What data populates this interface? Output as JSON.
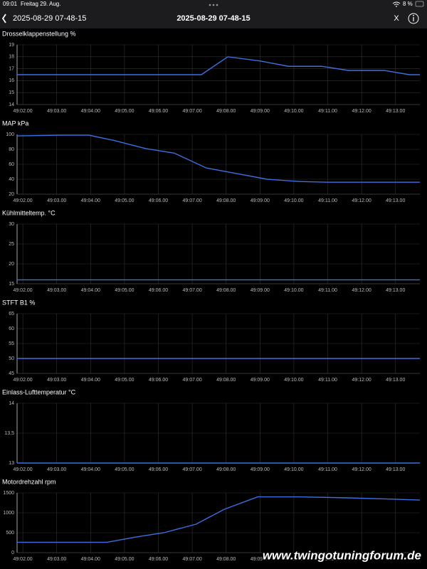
{
  "status_bar": {
    "time": "09:01",
    "date": "Freitag 29. Aug.",
    "battery": "8 %"
  },
  "header": {
    "back_title": "2025-08-29 07-48-15",
    "title": "2025-08-29 07-48-15",
    "close": "X"
  },
  "watermark": "www.twingotuningforum.de",
  "chart_data": [
    {
      "type": "line",
      "title": "Drosselklappenstellung %",
      "color": "#3d6fe3",
      "grid": true,
      "x": [
        2941.83,
        2947.27,
        2948.05,
        2949.0,
        2949.84,
        2950.82,
        2951.62,
        2952.67,
        2953.41,
        2953.72
      ],
      "values": [
        16.5,
        16.5,
        18.0,
        17.65,
        17.2,
        17.2,
        16.85,
        16.85,
        16.5,
        16.5
      ],
      "xlim": [
        2941.83,
        2953.72
      ],
      "xticks": [
        {
          "value": 2942,
          "label": "49:02.00"
        },
        {
          "value": 2943,
          "label": "49:03.00"
        },
        {
          "value": 2944,
          "label": "49:04.00"
        },
        {
          "value": 2945,
          "label": "49:05.00"
        },
        {
          "value": 2946,
          "label": "49:06.00"
        },
        {
          "value": 2947,
          "label": "49:07.00"
        },
        {
          "value": 2948,
          "label": "49:08.00"
        },
        {
          "value": 2949,
          "label": "49:09.00"
        },
        {
          "value": 2950,
          "label": "49:10.00"
        },
        {
          "value": 2951,
          "label": "49:11.00"
        },
        {
          "value": 2952,
          "label": "49:12.00"
        },
        {
          "value": 2953,
          "label": "49:13.00"
        }
      ],
      "ylim": [
        14,
        19
      ],
      "yticks": [
        14,
        15,
        16,
        17,
        18,
        19
      ]
    },
    {
      "type": "line",
      "title": "MAP kPa",
      "color": "#3d6fe3",
      "grid": true,
      "x": [
        2941.83,
        2943.11,
        2943.95,
        2944.69,
        2945.63,
        2946.47,
        2947.42,
        2948.26,
        2949.21,
        2950.15,
        2950.99,
        2953.72
      ],
      "values": [
        98,
        99,
        99,
        92,
        81,
        75,
        55,
        48,
        40,
        37,
        36,
        36
      ],
      "xlim": [
        2941.83,
        2953.72
      ],
      "xticks": [
        {
          "value": 2942,
          "label": "49:02.00"
        },
        {
          "value": 2943,
          "label": "49:03.00"
        },
        {
          "value": 2944,
          "label": "49:04.00"
        },
        {
          "value": 2945,
          "label": "49:05.00"
        },
        {
          "value": 2946,
          "label": "49:06.00"
        },
        {
          "value": 2947,
          "label": "49:07.00"
        },
        {
          "value": 2948,
          "label": "49:08.00"
        },
        {
          "value": 2949,
          "label": "49:09.00"
        },
        {
          "value": 2950,
          "label": "49:10.00"
        },
        {
          "value": 2951,
          "label": "49:11.00"
        },
        {
          "value": 2952,
          "label": "49:12.00"
        },
        {
          "value": 2953,
          "label": "49:13.00"
        }
      ],
      "ylim": [
        20,
        100
      ],
      "yticks": [
        20,
        40,
        60,
        80,
        100
      ]
    },
    {
      "type": "line",
      "title": "Kühlmitteltemp. °C",
      "color": "#3d6fe3",
      "grid": true,
      "x": [
        2941.83,
        2953.72
      ],
      "values": [
        16,
        16
      ],
      "xlim": [
        2941.83,
        2953.72
      ],
      "xticks": [
        {
          "value": 2942,
          "label": "49:02.00"
        },
        {
          "value": 2943,
          "label": "49:03.00"
        },
        {
          "value": 2944,
          "label": "49:04.00"
        },
        {
          "value": 2945,
          "label": "49:05.00"
        },
        {
          "value": 2946,
          "label": "49:06.00"
        },
        {
          "value": 2947,
          "label": "49:07.00"
        },
        {
          "value": 2948,
          "label": "49:08.00"
        },
        {
          "value": 2949,
          "label": "49:09.00"
        },
        {
          "value": 2950,
          "label": "49:10.00"
        },
        {
          "value": 2951,
          "label": "49:11.00"
        },
        {
          "value": 2952,
          "label": "49:12.00"
        },
        {
          "value": 2953,
          "label": "49:13.00"
        }
      ],
      "ylim": [
        15,
        30
      ],
      "yticks": [
        15,
        20,
        25,
        30
      ]
    },
    {
      "type": "line",
      "title": "STFT B1 %",
      "color": "#3d6fe3",
      "grid": true,
      "x": [
        2941.83,
        2953.72
      ],
      "values": [
        50,
        50
      ],
      "xlim": [
        2941.83,
        2953.72
      ],
      "xticks": [
        {
          "value": 2942,
          "label": "49:02.00"
        },
        {
          "value": 2943,
          "label": "49:03.00"
        },
        {
          "value": 2944,
          "label": "49:04.00"
        },
        {
          "value": 2945,
          "label": "49:05.00"
        },
        {
          "value": 2946,
          "label": "49:06.00"
        },
        {
          "value": 2947,
          "label": "49:07.00"
        },
        {
          "value": 2948,
          "label": "49:08.00"
        },
        {
          "value": 2949,
          "label": "49:09.00"
        },
        {
          "value": 2950,
          "label": "49:10.00"
        },
        {
          "value": 2951,
          "label": "49:11.00"
        },
        {
          "value": 2952,
          "label": "49:12.00"
        },
        {
          "value": 2953,
          "label": "49:13.00"
        }
      ],
      "ylim": [
        45,
        65
      ],
      "yticks": [
        45,
        50,
        55,
        60,
        65
      ]
    },
    {
      "type": "line",
      "title": "Einlass-Lufttemperatur °C",
      "color": "#3d6fe3",
      "grid": true,
      "x": [
        2941.83,
        2953.72
      ],
      "values": [
        13,
        13
      ],
      "xlim": [
        2941.83,
        2953.72
      ],
      "xticks": [
        {
          "value": 2942,
          "label": "49:02.00"
        },
        {
          "value": 2943,
          "label": "49:03.00"
        },
        {
          "value": 2944,
          "label": "49:04.00"
        },
        {
          "value": 2945,
          "label": "49:05.00"
        },
        {
          "value": 2946,
          "label": "49:06.00"
        },
        {
          "value": 2947,
          "label": "49:07.00"
        },
        {
          "value": 2948,
          "label": "49:08.00"
        },
        {
          "value": 2949,
          "label": "49:09.00"
        },
        {
          "value": 2950,
          "label": "49:10.00"
        },
        {
          "value": 2951,
          "label": "49:11.00"
        },
        {
          "value": 2952,
          "label": "49:12.00"
        },
        {
          "value": 2953,
          "label": "49:13.00"
        }
      ],
      "ylim": [
        13,
        14
      ],
      "yticks": [
        13,
        {
          "value": 13.5,
          "label": "13,5"
        },
        14
      ]
    },
    {
      "type": "line",
      "title": "Motordrehzahl rpm",
      "color": "#3d6fe3",
      "grid": true,
      "x": [
        2941.83,
        2944.48,
        2945.32,
        2946.16,
        2947.11,
        2947.95,
        2948.93,
        2950.15,
        2951.62,
        2952.67,
        2953.72
      ],
      "values": [
        260,
        260,
        390,
        500,
        714,
        1090,
        1400,
        1400,
        1375,
        1350,
        1320
      ],
      "xlim": [
        2941.83,
        2953.72
      ],
      "xticks": [
        {
          "value": 2942,
          "label": "49:02.00"
        },
        {
          "value": 2943,
          "label": "49:03.00"
        },
        {
          "value": 2944,
          "label": "49:04.00"
        },
        {
          "value": 2945,
          "label": "49:05.00"
        },
        {
          "value": 2946,
          "label": "49:06.00"
        },
        {
          "value": 2947,
          "label": "49:07.00"
        },
        {
          "value": 2948,
          "label": "49:08.00"
        },
        {
          "value": 2949,
          "label": "49:09.00"
        },
        {
          "value": 2950,
          "label": "49:10.00"
        },
        {
          "value": 2951,
          "label": "49:11.00"
        },
        {
          "value": 2952,
          "label": "49:12.00"
        },
        {
          "value": 2953,
          "label": "49:13.00"
        }
      ],
      "ylim": [
        0,
        1500
      ],
      "yticks": [
        0,
        500,
        1000,
        1500
      ]
    }
  ]
}
